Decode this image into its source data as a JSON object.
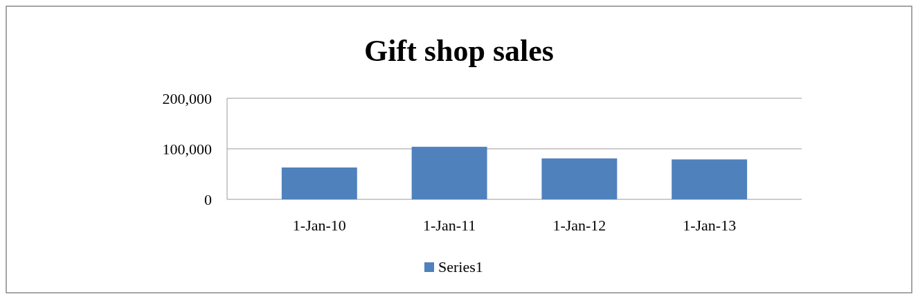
{
  "chart_data": {
    "type": "bar",
    "title": "Gift shop sales",
    "categories": [
      "1-Jan-10",
      "1-Jan-11",
      "1-Jan-12",
      "1-Jan-13"
    ],
    "series": [
      {
        "name": "Series1",
        "color": "#4f81bd",
        "values": [
          63000,
          104000,
          81000,
          79000
        ]
      }
    ],
    "ylim": [
      0,
      200000
    ],
    "yticks": [
      0,
      {
        "value": 100000,
        "label": "100,000"
      },
      {
        "value": 200000,
        "label": "200,000"
      }
    ],
    "grid": "y",
    "legend": "bottom"
  }
}
